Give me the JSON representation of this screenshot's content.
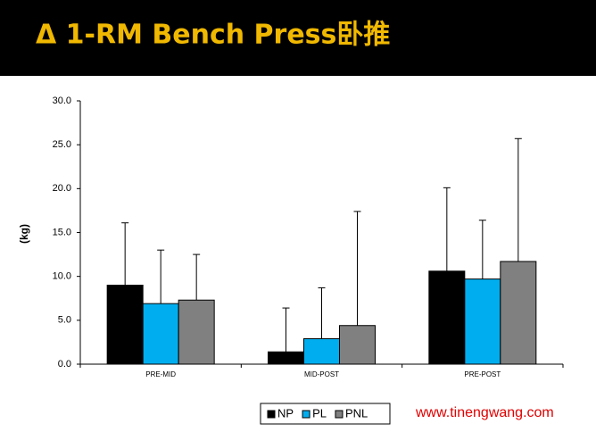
{
  "header": {
    "title": "Δ 1-RM Bench Press卧推"
  },
  "chart_data": {
    "type": "bar",
    "y_label": "(kg)",
    "categories": [
      "PRE-MID",
      "MID-POST",
      "PRE-POST"
    ],
    "series": [
      {
        "name": "NP",
        "color": "#000000",
        "values": [
          9.0,
          1.4,
          10.6
        ],
        "errors": [
          7.1,
          5.0,
          9.5
        ]
      },
      {
        "name": "PL",
        "color": "#00aeef",
        "values": [
          6.9,
          2.9,
          9.7
        ],
        "errors": [
          6.1,
          5.8,
          6.7
        ]
      },
      {
        "name": "PNL",
        "color": "#808080",
        "values": [
          7.3,
          4.4,
          11.7
        ],
        "errors": [
          5.2,
          13.0,
          14.0
        ]
      }
    ],
    "ylim": [
      0,
      30
    ],
    "yticks": [
      {
        "value": 0,
        "label": "0.0"
      },
      {
        "value": 5,
        "label": "5.0"
      },
      {
        "value": 10,
        "label": "10.0"
      },
      {
        "value": 15,
        "label": "15.0"
      },
      {
        "value": 20,
        "label": "20.0"
      },
      {
        "value": 25,
        "label": "25.0"
      },
      {
        "value": 30,
        "label": "30.0"
      }
    ],
    "legend": "bottom"
  },
  "footer": {
    "website": "www.tinengwang.com"
  }
}
